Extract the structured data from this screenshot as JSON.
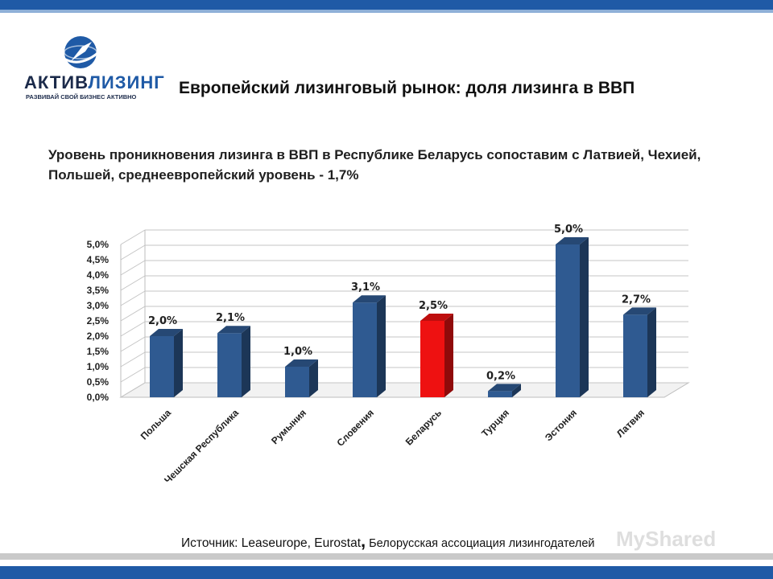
{
  "header": {
    "title": "Европейский лизинговый рынок: доля лизинга в ВВП"
  },
  "logo": {
    "brand_part1": "АКТИВ",
    "brand_part2": "ЛИЗИНГ",
    "slogan": "РАЗВИВАЙ СВОЙ БИЗНЕС АКТИВНО"
  },
  "subtitle": "Уровень проникновения лизинга в ВВП в Республике Беларусь сопоставим с Латвией, Чехией, Польшей, среднеевропейский уровень  - 1,7%",
  "source": {
    "prefix": "Источник: ",
    "main": "Leaseurope, Eurostat",
    "comma": ",",
    "org": " Белорусская ассоциация лизингодателей"
  },
  "watermark": "MyShared",
  "colors": {
    "bar_default": "#2f5a91",
    "bar_highlight": "#ee1111",
    "accent": "#1f5aa6"
  },
  "chart_data": {
    "type": "bar",
    "categories": [
      "Польша",
      "Чешская Республика",
      "Румыния",
      "Словения",
      "Беларусь",
      "Турция",
      "Эстония",
      "Латвия"
    ],
    "values": [
      2.0,
      2.1,
      1.0,
      3.1,
      2.5,
      0.2,
      5.0,
      2.7
    ],
    "data_labels": [
      "2,0%",
      "2,1%",
      "1,0%",
      "3,1%",
      "2,5%",
      "0,2%",
      "5,0%",
      "2,7%"
    ],
    "highlight": "Беларусь",
    "ylim": [
      0,
      5
    ],
    "yticks": [
      "0,0%",
      "0,5%",
      "1,0%",
      "1,5%",
      "2,0%",
      "2,5%",
      "3,0%",
      "3,5%",
      "4,0%",
      "4,5%",
      "5,0%"
    ],
    "title": "",
    "xlabel": "",
    "ylabel": "",
    "grid": true
  }
}
